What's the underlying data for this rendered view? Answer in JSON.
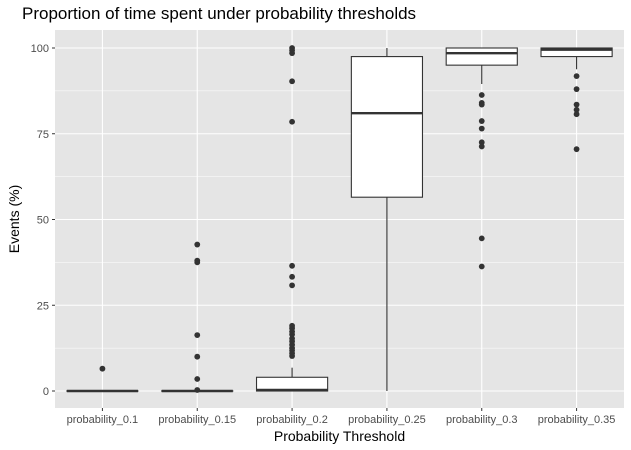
{
  "chart_data": {
    "type": "boxplot",
    "title": "Proportion of time spent under probability thresholds",
    "xlabel": "Probability Threshold",
    "ylabel": "Events (%)",
    "ylim": [
      -6,
      103
    ],
    "yticks": [
      0,
      25,
      50,
      75,
      100
    ],
    "grid": true,
    "legend": "none",
    "colors": {
      "panel_background": "#e5e5e5",
      "gridline": "#ffffff",
      "box_fill": "#ffffff",
      "box_line": "#333333",
      "outlier": "#333333"
    },
    "categories": [
      "probability_0.1",
      "probability_0.15",
      "probability_0.2",
      "probability_0.25",
      "probability_0.3",
      "probability_0.35"
    ],
    "boxes": [
      {
        "category": "probability_0.1",
        "whisker_low": 0,
        "q1": 0,
        "median": 0,
        "q3": 0,
        "whisker_high": 0,
        "outliers": [
          6.5
        ]
      },
      {
        "category": "probability_0.15",
        "whisker_low": 0,
        "q1": 0,
        "median": 0,
        "q3": 0,
        "whisker_high": 0,
        "outliers": [
          0.3,
          3.5,
          10,
          16.3,
          37.5,
          38,
          42.7
        ]
      },
      {
        "category": "probability_0.2",
        "whisker_low": 0,
        "q1": 0,
        "median": 0.3,
        "q3": 4,
        "whisker_high": 6.8,
        "outliers": [
          10.2,
          11,
          11.8,
          12.5,
          13.5,
          14.5,
          15.3,
          16.5,
          17.3,
          18.3,
          19,
          30.8,
          33.3,
          36.5,
          78.5,
          90.3,
          98.5,
          99.3,
          100
        ]
      },
      {
        "category": "probability_0.25",
        "whisker_low": 0,
        "q1": 56.5,
        "median": 81,
        "q3": 97.5,
        "whisker_high": 100,
        "outliers": []
      },
      {
        "category": "probability_0.3",
        "whisker_low": 89.5,
        "q1": 95,
        "median": 98.5,
        "q3": 100,
        "whisker_high": 100,
        "outliers": [
          86.3,
          84,
          83.5,
          78.7,
          76.5,
          72.5,
          71.3,
          44.5,
          36.3
        ]
      },
      {
        "category": "probability_0.35",
        "whisker_low": 93.8,
        "q1": 97.5,
        "median": 99.5,
        "q3": 100,
        "whisker_high": 100,
        "outliers": [
          91.8,
          88,
          83.5,
          82,
          80.7,
          70.5
        ]
      }
    ]
  }
}
